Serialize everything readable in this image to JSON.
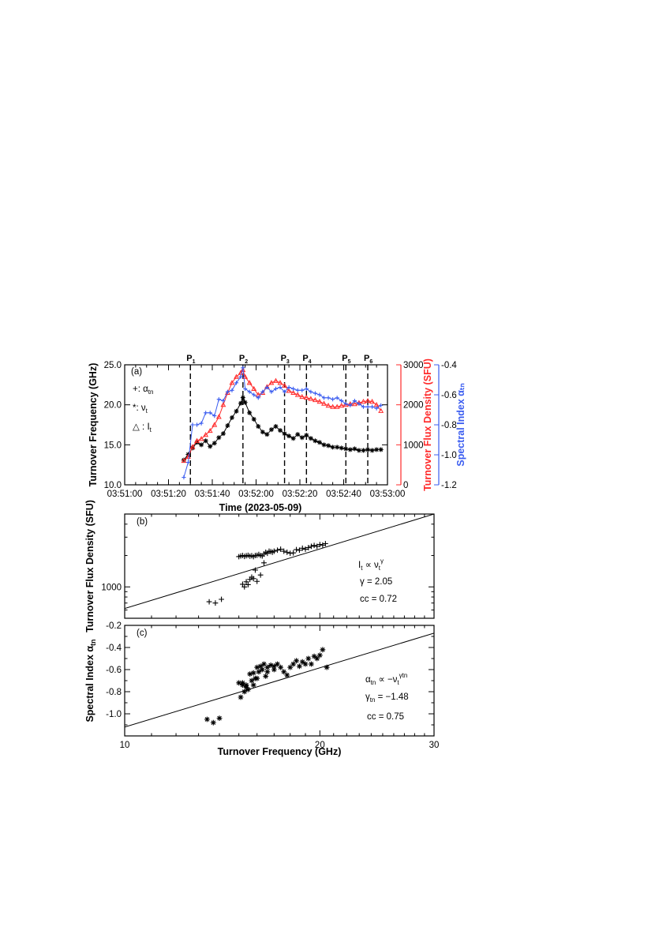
{
  "colors": {
    "black": "#000000",
    "red": "#ff2a2a",
    "blue": "#3a5cf0"
  },
  "chart_data": [
    {
      "panel_label": "(a)",
      "type": "line",
      "xlabel": "Time (2023-05-09)",
      "xlim_seconds_after": [
        0,
        120
      ],
      "x_ticks": [
        "03:51:00",
        "03:51:20",
        "03:51:40",
        "03:52:00",
        "03:52:20",
        "03:52:40",
        "03:53:00"
      ],
      "y_left": {
        "label": "Turnover Frequency (GHz)",
        "range": [
          10.0,
          25.0
        ],
        "ticks": [
          "10.0",
          "15.0",
          "20.0",
          "25.0"
        ],
        "color": "#000000"
      },
      "y_right1": {
        "label": "Turnover Flux Density (SFU)",
        "range": [
          0,
          3000
        ],
        "ticks": [
          "0",
          "1000",
          "2000",
          "3000"
        ],
        "color": "#ff2a2a"
      },
      "y_right2": {
        "label": "Spectral Index  αₜₙ",
        "range": [
          -1.2,
          -0.4
        ],
        "ticks": [
          "-1.2",
          "-1.0",
          "-0.8",
          "-0.6",
          "-0.4"
        ],
        "color": "#3a5cf0"
      },
      "peaks": [
        {
          "name": "P",
          "sub": "1",
          "t": 30
        },
        {
          "name": "P",
          "sub": "2",
          "t": 54
        },
        {
          "name": "P",
          "sub": "3",
          "t": 73
        },
        {
          "name": "P",
          "sub": "4",
          "t": 83
        },
        {
          "name": "P",
          "sub": "5",
          "t": 101
        },
        {
          "name": "P",
          "sub": "6",
          "t": 111
        }
      ],
      "legend": [
        {
          "marker": "+",
          "sep": ": ",
          "symbol": "α",
          "sub": "tn",
          "color": "#3a5cf0"
        },
        {
          "marker": "*",
          "sep": ": ",
          "symbol": "ν",
          "sub": "t",
          "color": "#000000"
        },
        {
          "marker": "△",
          "sep": " : ",
          "symbol": "I",
          "sub": "t",
          "color": "#ff2a2a"
        }
      ],
      "series": [
        {
          "name": "nu_t",
          "axis": "left",
          "color": "#000000",
          "t": [
            27,
            29,
            31,
            33,
            35,
            37,
            39,
            41,
            43,
            45,
            47,
            49,
            51,
            53,
            54,
            55,
            57,
            59,
            61,
            63,
            65,
            67,
            69,
            71,
            73,
            75,
            77,
            79,
            81,
            83,
            85,
            87,
            89,
            91,
            93,
            95,
            97,
            99,
            101,
            103,
            105,
            107,
            109,
            111,
            113,
            115,
            117
          ],
          "values": [
            13.1,
            13.8,
            14.6,
            15.3,
            15.0,
            15.5,
            14.8,
            15.2,
            15.9,
            16.4,
            17.4,
            18.4,
            19.2,
            20.2,
            20.9,
            20.3,
            19.0,
            18.2,
            17.3,
            16.6,
            16.3,
            16.9,
            17.3,
            16.8,
            16.4,
            16.1,
            15.8,
            16.3,
            15.9,
            16.2,
            15.8,
            15.5,
            15.3,
            15.0,
            14.9,
            14.7,
            14.7,
            14.6,
            14.5,
            14.4,
            14.5,
            14.3,
            14.3,
            14.4,
            14.3,
            14.4,
            14.4
          ]
        },
        {
          "name": "I_t",
          "axis": "right1",
          "color": "#ff2a2a",
          "t": [
            27,
            29,
            31,
            33,
            35,
            37,
            39,
            41,
            43,
            45,
            47,
            49,
            51,
            53,
            54,
            55,
            57,
            59,
            61,
            63,
            65,
            67,
            69,
            71,
            73,
            75,
            77,
            79,
            81,
            83,
            85,
            87,
            89,
            91,
            93,
            95,
            97,
            99,
            101,
            103,
            105,
            107,
            109,
            111,
            113,
            115,
            117
          ],
          "values": [
            600,
            700,
            950,
            1100,
            1150,
            1250,
            1350,
            1500,
            1700,
            2000,
            2300,
            2550,
            2700,
            2800,
            2870,
            2700,
            2550,
            2400,
            2250,
            2300,
            2450,
            2550,
            2600,
            2550,
            2480,
            2350,
            2300,
            2250,
            2200,
            2180,
            2150,
            2120,
            2080,
            2030,
            1980,
            1950,
            1950,
            1980,
            2000,
            2020,
            2020,
            2050,
            2080,
            2100,
            2080,
            2000,
            1850
          ]
        },
        {
          "name": "alpha_tn",
          "axis": "right2",
          "color": "#3a5cf0",
          "t": [
            27,
            29,
            31,
            33,
            35,
            37,
            39,
            41,
            43,
            45,
            47,
            49,
            51,
            53,
            54,
            55,
            57,
            59,
            61,
            63,
            65,
            67,
            69,
            71,
            73,
            75,
            77,
            79,
            81,
            83,
            85,
            87,
            89,
            91,
            93,
            95,
            97,
            99,
            101,
            103,
            105,
            107,
            109,
            111,
            113,
            115,
            117
          ],
          "values": [
            -1.15,
            -1.05,
            -0.8,
            -0.8,
            -0.79,
            -0.72,
            -0.72,
            -0.74,
            -0.63,
            -0.64,
            -0.58,
            -0.57,
            -0.52,
            -0.48,
            -0.42,
            -0.56,
            -0.58,
            -0.6,
            -0.62,
            -0.58,
            -0.55,
            -0.58,
            -0.56,
            -0.55,
            -0.58,
            -0.55,
            -0.56,
            -0.57,
            -0.57,
            -0.56,
            -0.58,
            -0.59,
            -0.6,
            -0.62,
            -0.62,
            -0.63,
            -0.62,
            -0.64,
            -0.66,
            -0.67,
            -0.64,
            -0.66,
            -0.68,
            -0.68,
            -0.68,
            -0.69,
            -0.67
          ]
        }
      ]
    },
    {
      "panel_label": "(b)",
      "type": "scatter",
      "ylabel": "Turnover Flux Density (SFU)",
      "xscale": "log",
      "yscale": "log",
      "xlim": [
        10,
        30
      ],
      "ylim": [
        500,
        5000
      ],
      "y_ticks": [
        "1000"
      ],
      "annotation": {
        "lhs_sym": "I",
        "lhs_sub": "t",
        "rel": " ∝ ",
        "rhs_sym": "ν",
        "rhs_sub": "t",
        "rhs_sup": "γ",
        "gamma": "γ  =  2.05",
        "cc": "cc  =  0.72"
      },
      "fit": {
        "x": [
          10,
          30
        ],
        "y": [
          620,
          5000
        ]
      },
      "points": {
        "x": [
          13.5,
          13.8,
          14.1,
          15.0,
          15.1,
          15.2,
          15.3,
          15.4,
          15.5,
          15.6,
          15.7,
          15.8,
          15.9,
          16.0,
          16.1,
          16.2,
          16.3,
          16.4,
          16.5,
          16.6,
          16.7,
          16.8,
          16.9,
          17.0,
          17.2,
          17.4,
          17.6,
          17.8,
          18.0,
          18.2,
          18.4,
          18.6,
          18.8,
          19.0,
          19.2,
          19.4,
          19.6,
          19.8,
          20.0,
          20.2,
          20.4,
          15.2,
          15.4,
          15.6,
          15.8,
          16.0,
          15.3,
          15.5,
          15.7,
          16.2,
          15.9,
          16.4
        ],
        "y": [
          720,
          700,
          760,
          1950,
          1980,
          2000,
          1960,
          1990,
          2010,
          1970,
          1990,
          1950,
          2000,
          2010,
          2050,
          2000,
          1980,
          2070,
          2150,
          2100,
          2200,
          2180,
          2150,
          2200,
          2250,
          2300,
          2200,
          2150,
          2100,
          2120,
          2280,
          2250,
          2350,
          2300,
          2380,
          2450,
          2500,
          2450,
          2550,
          2520,
          2600,
          1060,
          1120,
          1180,
          1200,
          1130,
          1000,
          1050,
          1240,
          1300,
          1450,
          1700
        ]
      }
    },
    {
      "panel_label": "(c)",
      "type": "scatter",
      "ylabel": "Spectral Index  α",
      "ylabel_sub": "tn",
      "xlabel": "Turnover Frequency (GHz)",
      "xscale": "log",
      "xlim": [
        10,
        30
      ],
      "ylim": [
        -1.2,
        -0.2
      ],
      "x_ticks": [
        "10",
        "20",
        "30"
      ],
      "y_ticks": [
        "-1.0",
        "-0.8",
        "-0.6",
        "-0.4",
        "-0.2"
      ],
      "annotation": {
        "lhs_sym": "α",
        "lhs_sub": "tn",
        "rel": " ∝ ",
        "rhs_sym": "−ν",
        "rhs_sub": "t",
        "rhs_sup": "γtn",
        "gamma_sym": "γ",
        "gamma_sub": "tn",
        "gamma_val": "  =  −1.48",
        "cc": "cc  =  0.75"
      },
      "fit": {
        "x": [
          10,
          30
        ],
        "y": [
          -1.12,
          -0.27
        ]
      },
      "points": {
        "x": [
          13.4,
          13.7,
          14.0,
          15.0,
          15.2,
          15.4,
          15.6,
          15.8,
          16.0,
          16.2,
          16.4,
          16.6,
          16.8,
          17.0,
          17.2,
          17.4,
          17.6,
          17.8,
          18.0,
          18.2,
          18.4,
          18.6,
          18.8,
          19.0,
          19.2,
          19.4,
          19.6,
          19.8,
          20.0,
          20.2,
          20.5,
          15.1,
          15.3,
          15.5,
          15.7,
          15.9,
          16.1,
          16.3,
          16.5,
          15.4,
          15.8,
          16.0,
          16.6,
          17.0,
          15.2
        ],
        "y": [
          -1.05,
          -1.08,
          -1.04,
          -0.72,
          -0.72,
          -0.74,
          -0.64,
          -0.63,
          -0.58,
          -0.57,
          -0.55,
          -0.58,
          -0.56,
          -0.57,
          -0.55,
          -0.58,
          -0.62,
          -0.65,
          -0.58,
          -0.55,
          -0.52,
          -0.57,
          -0.53,
          -0.55,
          -0.5,
          -0.55,
          -0.48,
          -0.5,
          -0.47,
          -0.42,
          -0.58,
          -0.85,
          -0.8,
          -0.78,
          -0.7,
          -0.68,
          -0.62,
          -0.6,
          -0.66,
          -0.76,
          -0.74,
          -0.68,
          -0.62,
          -0.6,
          -0.74
        ]
      }
    }
  ]
}
